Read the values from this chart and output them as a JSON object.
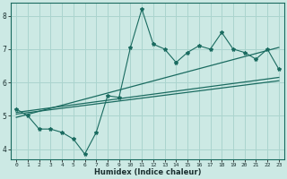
{
  "xlabel": "Humidex (Indice chaleur)",
  "ylabel": "",
  "bg_color": "#cce9e4",
  "grid_color": "#aad4ce",
  "line_color": "#1a6b60",
  "xlim": [
    -0.5,
    23.5
  ],
  "ylim": [
    3.7,
    8.4
  ],
  "xticks": [
    0,
    1,
    2,
    3,
    4,
    5,
    6,
    7,
    8,
    9,
    10,
    11,
    12,
    13,
    14,
    15,
    16,
    17,
    18,
    19,
    20,
    21,
    22,
    23
  ],
  "yticks": [
    4,
    5,
    6,
    7,
    8
  ],
  "data_x": [
    0,
    1,
    2,
    3,
    4,
    5,
    6,
    7,
    8,
    9,
    10,
    11,
    12,
    13,
    14,
    15,
    16,
    17,
    18,
    19,
    20,
    21,
    22,
    23
  ],
  "data_y": [
    5.2,
    5.0,
    4.6,
    4.6,
    4.5,
    4.3,
    3.85,
    4.5,
    5.6,
    5.55,
    7.05,
    8.2,
    7.15,
    7.0,
    6.6,
    6.9,
    7.1,
    7.0,
    7.5,
    7.0,
    6.9,
    6.7,
    7.0,
    6.4
  ],
  "trend1_x": [
    0,
    23
  ],
  "trend1_y": [
    5.05,
    6.05
  ],
  "trend2_x": [
    0,
    23
  ],
  "trend2_y": [
    4.95,
    7.05
  ],
  "trend3_x": [
    0,
    23
  ],
  "trend3_y": [
    5.1,
    6.15
  ],
  "figsize": [
    3.2,
    2.0
  ],
  "dpi": 100
}
